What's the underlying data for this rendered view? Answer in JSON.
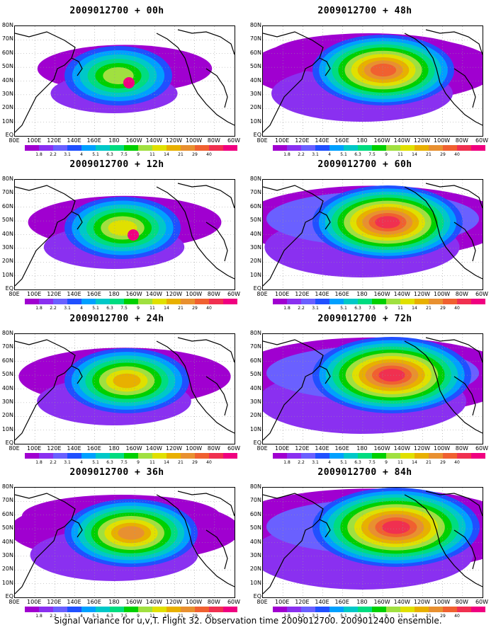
{
  "panels": [
    {
      "title": "2009012700 + 00h",
      "level": 1
    },
    {
      "title": "2009012700 + 48h",
      "level": 5
    },
    {
      "title": "2009012700 + 12h",
      "level": 2
    },
    {
      "title": "2009012700 + 60h",
      "level": 6
    },
    {
      "title": "2009012700 + 24h",
      "level": 3
    },
    {
      "title": "2009012700 + 72h",
      "level": 7
    },
    {
      "title": "2009012700 + 36h",
      "level": 4
    },
    {
      "title": "2009012700 + 84h",
      "level": 8
    }
  ],
  "y_labels": [
    "80N",
    "70N",
    "60N",
    "50N",
    "40N",
    "30N",
    "20N",
    "10N",
    "EQ"
  ],
  "x_labels": [
    "80E",
    "100E",
    "120E",
    "140E",
    "160E",
    "180",
    "160W",
    "140W",
    "120W",
    "100W",
    "80W",
    "60W"
  ],
  "colorbar": {
    "colors": [
      "#a000d0",
      "#8a30f0",
      "#6a60ff",
      "#2050ff",
      "#00a0ff",
      "#00c8c8",
      "#00dc80",
      "#00d000",
      "#a0e040",
      "#e0e000",
      "#e8b000",
      "#e89030",
      "#f06030",
      "#f03050",
      "#f00080"
    ],
    "labels": [
      "1.8",
      "2.2",
      "3.1",
      "4",
      "5.1",
      "6.3",
      "7.5",
      "9",
      "11",
      "14",
      "21",
      "29",
      "40"
    ]
  },
  "footer": "Signal Variance for u,v,T. Flight 32. Observation time 2009012700. 2009012400 ensemble."
}
